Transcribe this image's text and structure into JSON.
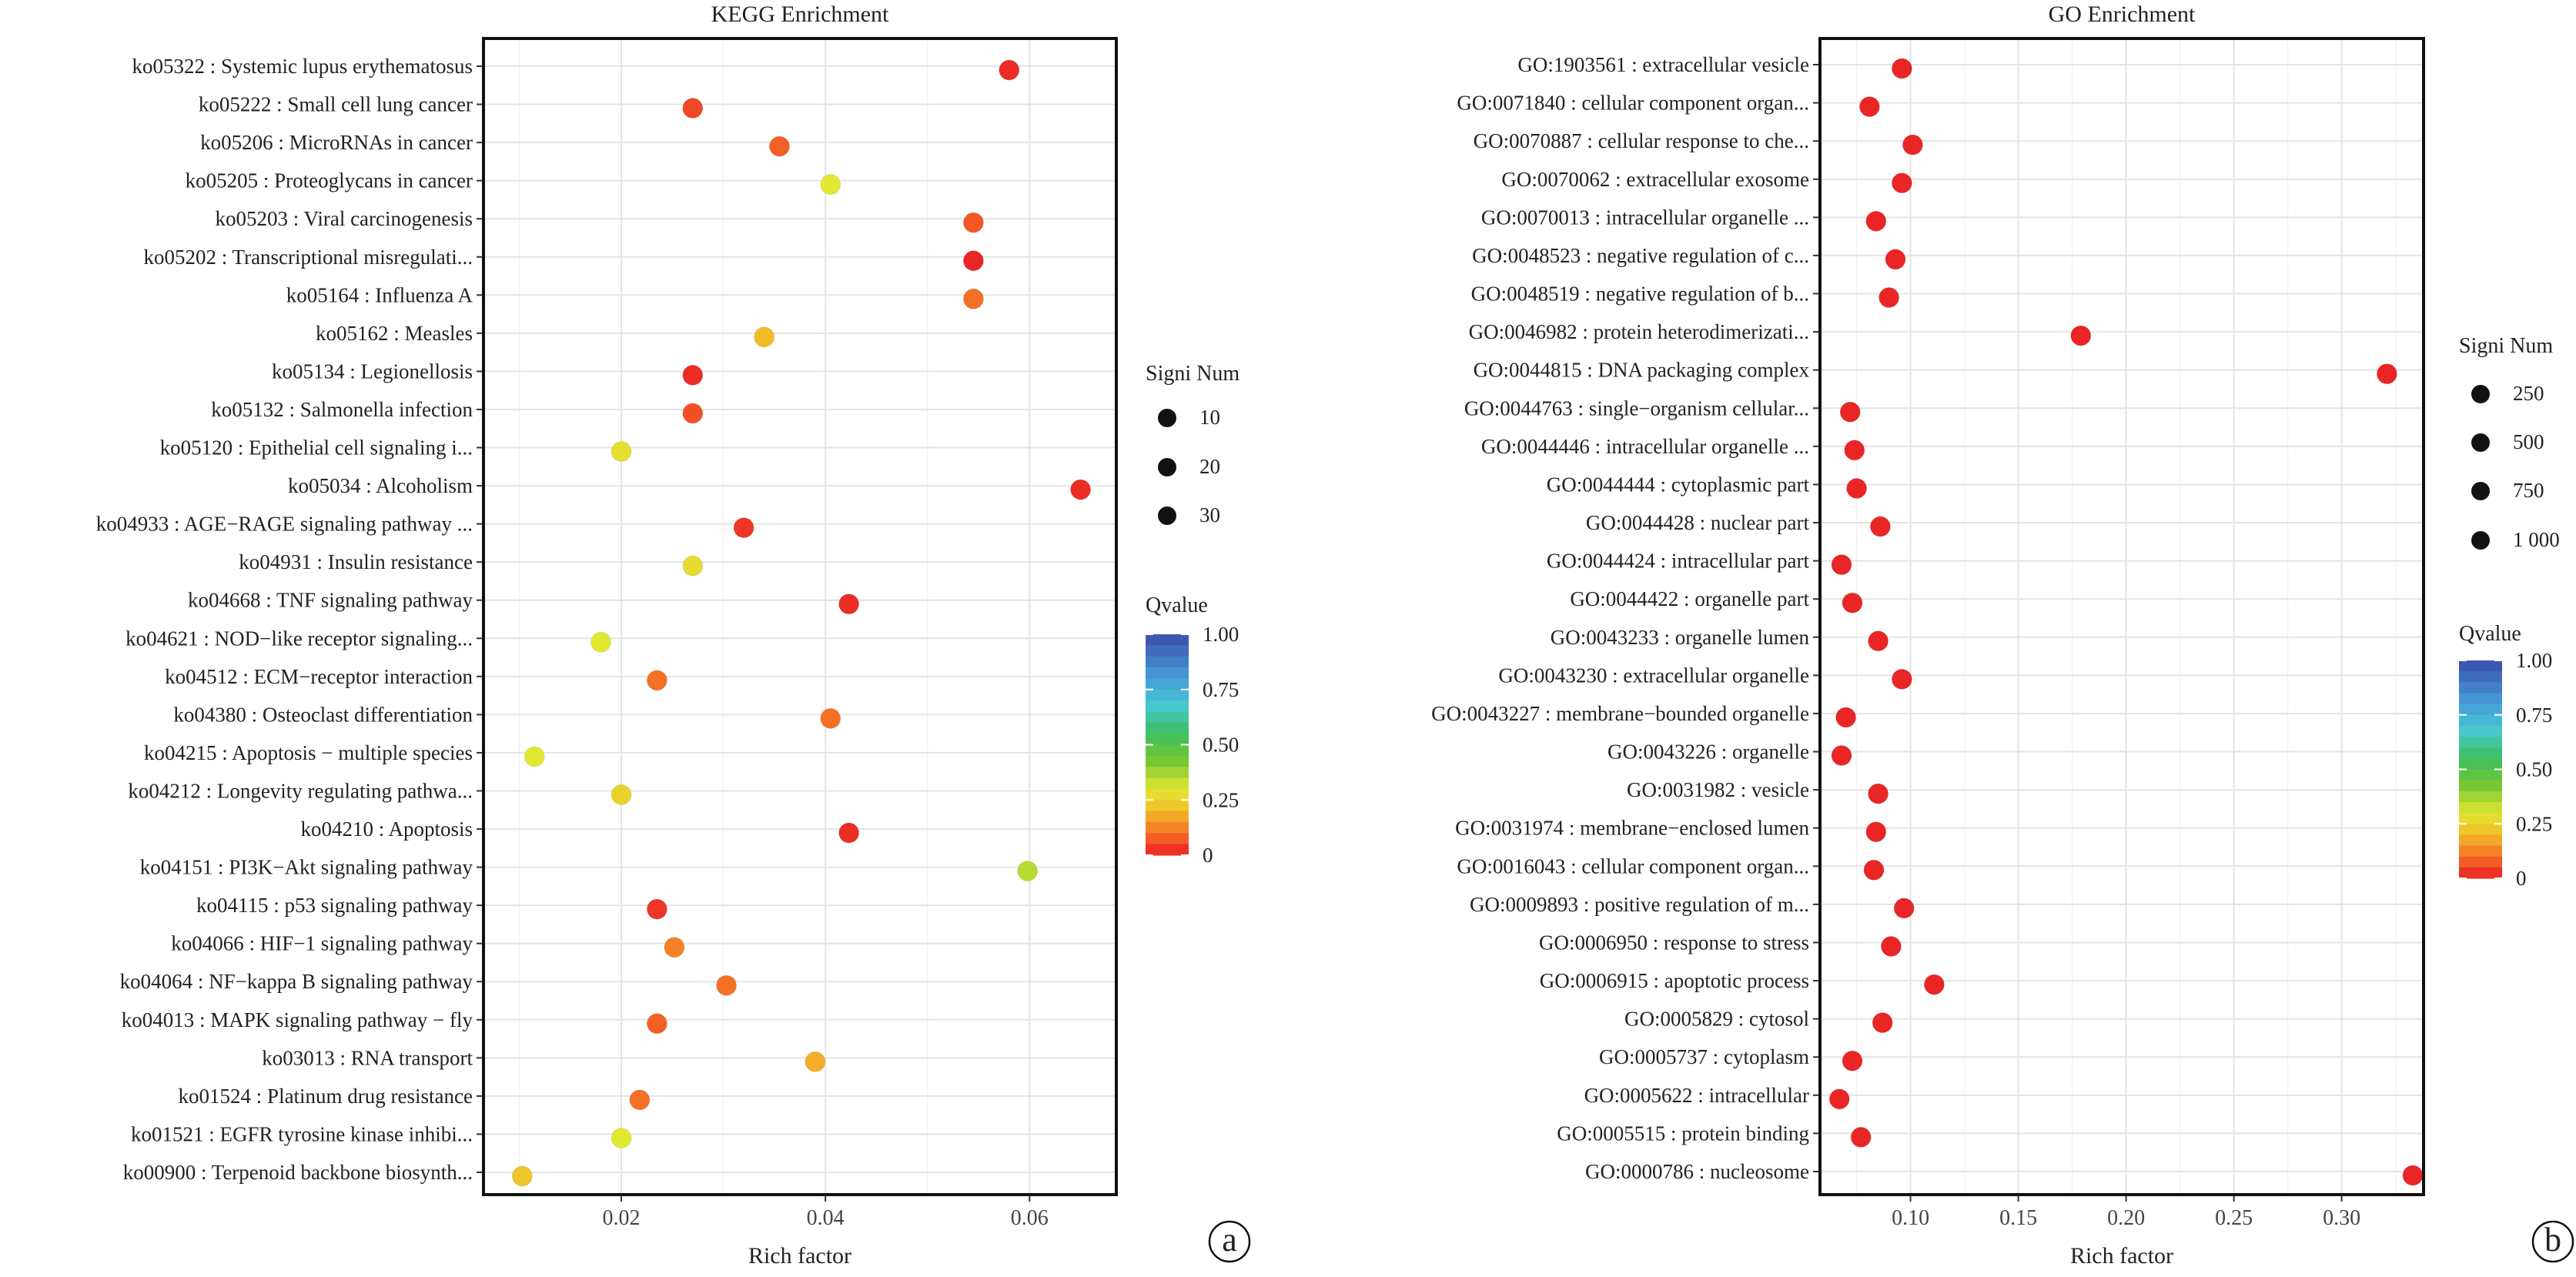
{
  "chart_data": [
    {
      "type": "scatter",
      "title": "KEGG Enrichment",
      "xlabel": "Rich factor",
      "ylabel": "",
      "xlim": [
        0.0065,
        0.0685
      ],
      "xticks": [
        0.02,
        0.04,
        0.06
      ],
      "xtick_labels": [
        "0.02",
        "0.04",
        "0.06"
      ],
      "grid": true,
      "panel_label": "a",
      "categories": [
        "ko05322 : Systemic lupus erythematosus",
        "ko05222 : Small cell lung cancer",
        "ko05206 : MicroRNAs in cancer",
        "ko05205 : Proteoglycans in cancer",
        "ko05203 : Viral carcinogenesis",
        "ko05202 : Transcriptional misregulati...",
        "ko05164 : Influenza A",
        "ko05162 : Measles",
        "ko05134 : Legionellosis",
        "ko05132 : Salmonella infection",
        "ko05120 : Epithelial cell signaling i...",
        "ko05034 : Alcoholism",
        "ko04933 : AGE−RAGE signaling pathway ...",
        "ko04931 : Insulin resistance",
        "ko04668 : TNF signaling pathway",
        "ko04621 : NOD−like receptor signaling...",
        "ko04512 : ECM−receptor interaction",
        "ko04380 : Osteoclast differentiation",
        "ko04215 : Apoptosis − multiple species",
        "ko04212 : Longevity regulating pathwa...",
        "ko04210 : Apoptosis",
        "ko04151 : PI3K−Akt signaling pathway",
        "ko04115 : p53 signaling pathway",
        "ko04066 : HIF−1 signaling pathway",
        "ko04064 : NF−kappa B signaling pathway",
        "ko04013 : MAPK signaling pathway − fly",
        "ko03013 : RNA transport",
        "ko01524 : Platinum drug resistance",
        "ko01521 : EGFR tyrosine kinase inhibi...",
        "ko00900 : Terpenoid backbone biosynth..."
      ],
      "rich_factor": [
        0.058,
        0.027,
        0.0355,
        0.0405,
        0.0545,
        0.0545,
        0.0545,
        0.034,
        0.027,
        0.027,
        0.02,
        0.065,
        0.032,
        0.027,
        0.0423,
        0.018,
        0.0235,
        0.0405,
        0.0115,
        0.02,
        0.0423,
        0.0598,
        0.0235,
        0.0252,
        0.0303,
        0.0235,
        0.039,
        0.0218,
        0.02,
        0.0103
      ],
      "qvalue": [
        0.02,
        0.05,
        0.08,
        0.3,
        0.07,
        0.01,
        0.1,
        0.2,
        0.02,
        0.06,
        0.28,
        0.02,
        0.03,
        0.27,
        0.02,
        0.3,
        0.1,
        0.1,
        0.3,
        0.25,
        0.02,
        0.35,
        0.03,
        0.12,
        0.1,
        0.08,
        0.18,
        0.1,
        0.3,
        0.22
      ],
      "signi_num": [
        20,
        20,
        20,
        20,
        20,
        20,
        20,
        20,
        20,
        20,
        20,
        20,
        20,
        20,
        20,
        20,
        20,
        20,
        20,
        20,
        20,
        20,
        20,
        20,
        20,
        20,
        20,
        20,
        20,
        20
      ],
      "size_legend": {
        "title": "Signi Num",
        "labels": [
          "10",
          "20",
          "30"
        ]
      },
      "color_legend": {
        "title": "Qvalue",
        "labels": [
          "1.00",
          "0.75",
          "0.50",
          "0.25",
          "0"
        ]
      }
    },
    {
      "type": "scatter",
      "title": "GO Enrichment",
      "xlabel": "Rich factor",
      "ylabel": "",
      "xlim": [
        0.058,
        0.338
      ],
      "xticks": [
        0.1,
        0.15,
        0.2,
        0.25,
        0.3
      ],
      "xtick_labels": [
        "0.10",
        "0.15",
        "0.20",
        "0.25",
        "0.30"
      ],
      "grid": true,
      "panel_label": "b",
      "categories": [
        "GO:1903561 : extracellular vesicle",
        "GO:0071840 : cellular component organ...",
        "GO:0070887 : cellular response to che...",
        "GO:0070062 : extracellular exosome",
        "GO:0070013 : intracellular organelle ...",
        "GO:0048523 : negative regulation of c...",
        "GO:0048519 : negative regulation of b...",
        "GO:0046982 : protein heterodimerizati...",
        "GO:0044815 : DNA packaging complex",
        "GO:0044763 : single−organism cellular...",
        "GO:0044446 : intracellular organelle ...",
        "GO:0044444 : cytoplasmic part",
        "GO:0044428 : nuclear part",
        "GO:0044424 : intracellular part",
        "GO:0044422 : organelle part",
        "GO:0043233 : organelle lumen",
        "GO:0043230 : extracellular organelle",
        "GO:0043227 : membrane−bounded organelle",
        "GO:0043226 : organelle",
        "GO:0031982 : vesicle",
        "GO:0031974 : membrane−enclosed lumen",
        "GO:0016043 : cellular component organ...",
        "GO:0009893 : positive regulation of m...",
        "GO:0006950 : response to stress",
        "GO:0006915 : apoptotic process",
        "GO:0005829 : cytosol",
        "GO:0005737 : cytoplasm",
        "GO:0005622 : intracellular",
        "GO:0005515 : protein binding",
        "GO:0000786 : nucleosome"
      ],
      "rich_factor": [
        0.096,
        0.081,
        0.101,
        0.096,
        0.084,
        0.093,
        0.09,
        0.179,
        0.321,
        0.072,
        0.074,
        0.075,
        0.086,
        0.068,
        0.073,
        0.085,
        0.096,
        0.07,
        0.068,
        0.085,
        0.084,
        0.083,
        0.097,
        0.091,
        0.111,
        0.087,
        0.073,
        0.067,
        0.077,
        0.333
      ],
      "qvalue": [
        0.01,
        0.01,
        0.01,
        0.01,
        0.01,
        0.01,
        0.01,
        0.01,
        0.01,
        0.01,
        0.01,
        0.01,
        0.01,
        0.01,
        0.01,
        0.01,
        0.01,
        0.01,
        0.01,
        0.01,
        0.01,
        0.01,
        0.01,
        0.01,
        0.01,
        0.01,
        0.01,
        0.01,
        0.01,
        0.01
      ],
      "signi_num": [
        500,
        500,
        500,
        500,
        500,
        500,
        500,
        500,
        500,
        500,
        500,
        500,
        500,
        500,
        500,
        500,
        500,
        500,
        500,
        500,
        500,
        500,
        500,
        500,
        500,
        500,
        500,
        500,
        500,
        500
      ],
      "size_legend": {
        "title": "Signi Num",
        "labels": [
          "250",
          "500",
          "750",
          "1 000"
        ]
      },
      "color_legend": {
        "title": "Qvalue",
        "labels": [
          "1.00",
          "0.75",
          "0.50",
          "0.25",
          "0"
        ]
      }
    }
  ]
}
